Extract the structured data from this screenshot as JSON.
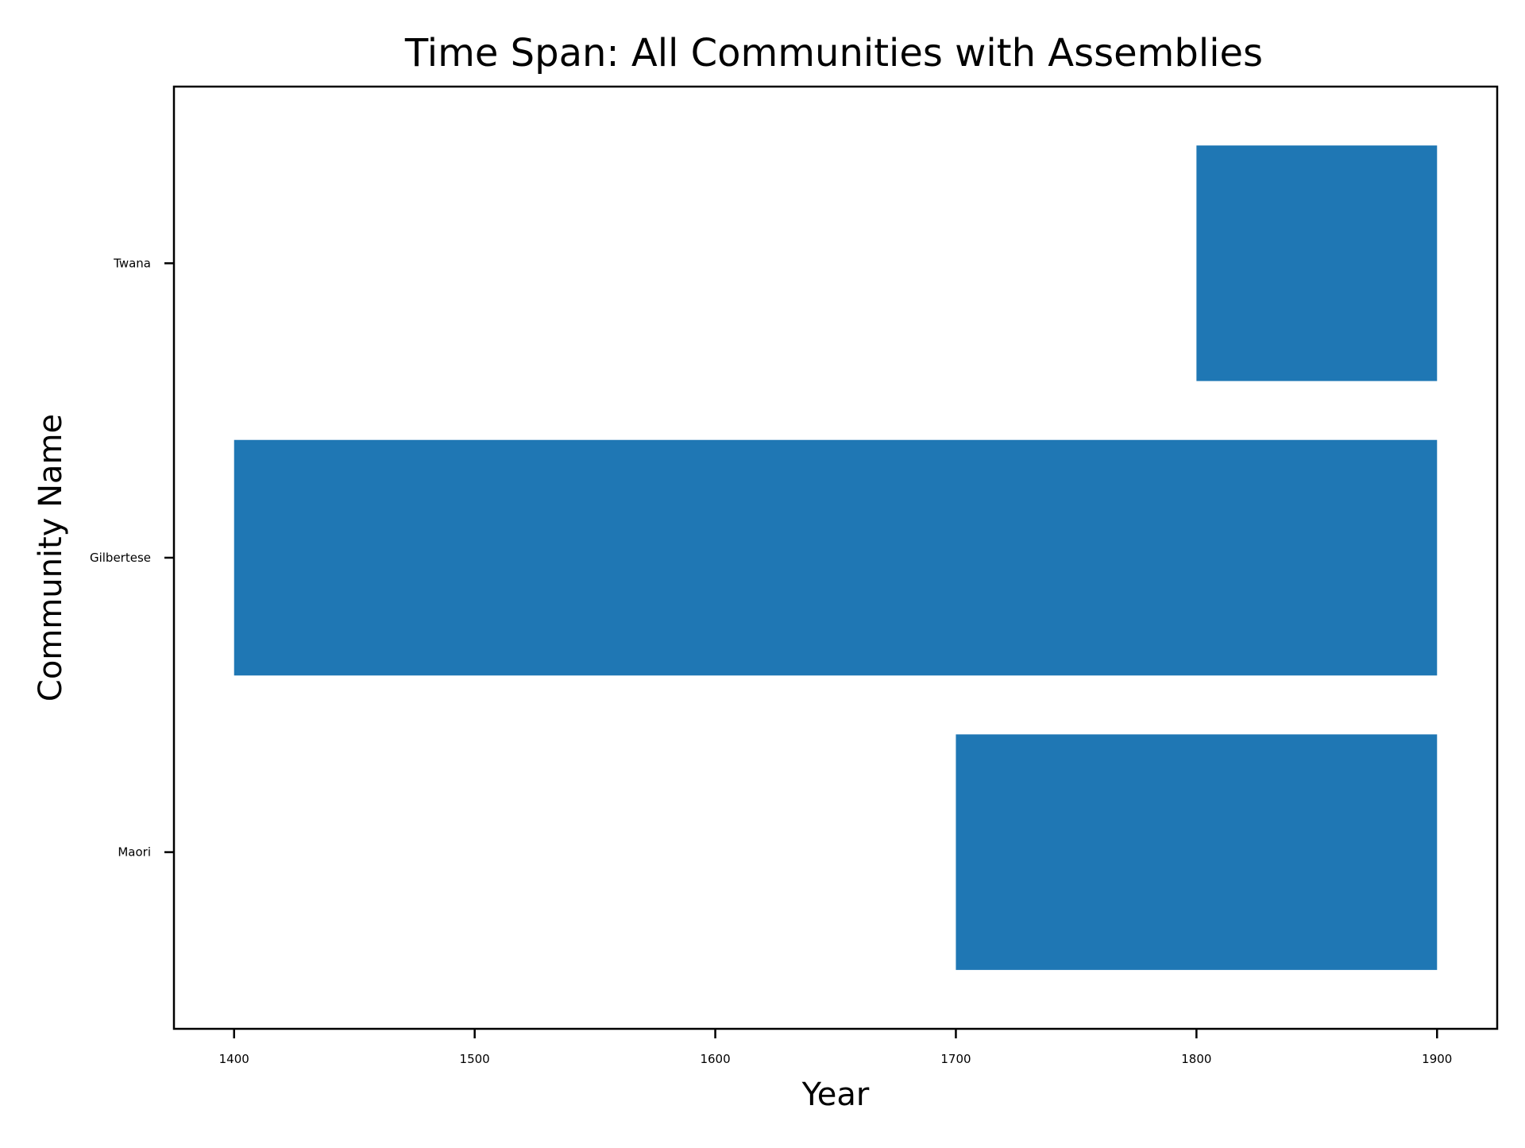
{
  "chart_data": {
    "type": "bar",
    "orientation": "horizontal",
    "title": "Time Span: All Communities with Assemblies",
    "xlabel": "Year",
    "ylabel": "Community Name",
    "categories": [
      "Maori",
      "Gilbertese",
      "Twana"
    ],
    "series": [
      {
        "start": [
          1700,
          1400,
          1800
        ],
        "end": [
          1900,
          1900,
          1900
        ]
      }
    ],
    "xlim": [
      1375,
      1925
    ],
    "xticks": [
      "1400",
      "1500",
      "1600",
      "1700",
      "1800",
      "1900"
    ],
    "grid": false,
    "legend": false,
    "colors": {
      "bar": "#1f77b4",
      "axis": "#000000",
      "background": "#ffffff"
    }
  }
}
